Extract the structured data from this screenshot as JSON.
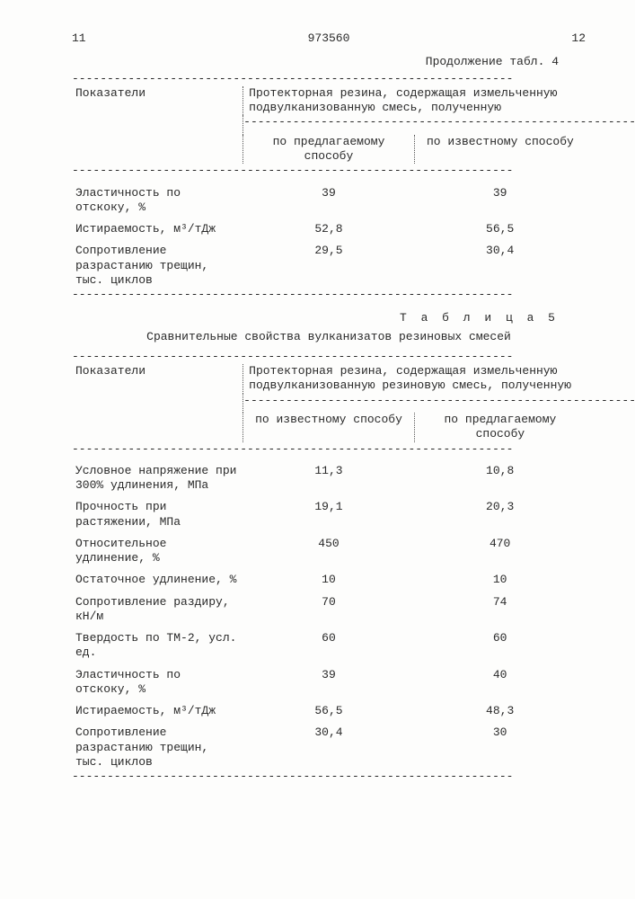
{
  "page": {
    "left_num": "11",
    "doc_num": "973560",
    "right_num": "12"
  },
  "table4": {
    "continuation": "Продолжение табл. 4",
    "col0": "Показатели",
    "header_span": "Протекторная резина, содержащая измельченную подвулканизованную смесь, полученную",
    "sub1": "по предлагаемому способу",
    "sub2": "по известному способу",
    "rows": [
      {
        "label": "Эластичность по отскоку, %",
        "v1": "39",
        "v2": "39"
      },
      {
        "label": "Истираемость, м³/тДж",
        "v1": "52,8",
        "v2": "56,5"
      },
      {
        "label": "Сопротивление разрастанию трещин, тыс. циклов",
        "v1": "29,5",
        "v2": "30,4"
      }
    ]
  },
  "table5": {
    "caption": "Т а б л и ц а  5",
    "title": "Сравнительные свойства вулканизатов резиновых смесей",
    "col0": "Показатели",
    "header_span": "Протекторная резина, содержащая измельченную подвулканизованную резиновую смесь, полученную",
    "sub1": "по известному способу",
    "sub2": "по предлагаемому способу",
    "rows": [
      {
        "label": "Условное напряжение при 300% удлинения, МПа",
        "v1": "11,3",
        "v2": "10,8"
      },
      {
        "label": "Прочность при растяжении, МПа",
        "v1": "19,1",
        "v2": "20,3"
      },
      {
        "label": "Относительное удлинение, %",
        "v1": "450",
        "v2": "470"
      },
      {
        "label": "Остаточное удлинение, %",
        "v1": "10",
        "v2": "10"
      },
      {
        "label": "Сопротивление раздиру, кН/м",
        "v1": "70",
        "v2": "74"
      },
      {
        "label": "Твердость по ТМ-2, усл. ед.",
        "v1": "60",
        "v2": "60"
      },
      {
        "label": "Эластичность по отскоку, %",
        "v1": "39",
        "v2": "40"
      },
      {
        "label": "Истираемость, м³/тДж",
        "v1": "56,5",
        "v2": "48,3"
      },
      {
        "label": "Сопротивление разрастанию трещин, тыс. циклов",
        "v1": "30,4",
        "v2": "30"
      }
    ]
  },
  "dash": "---------------------------------------------------------------",
  "dash_short": "----------------------"
}
